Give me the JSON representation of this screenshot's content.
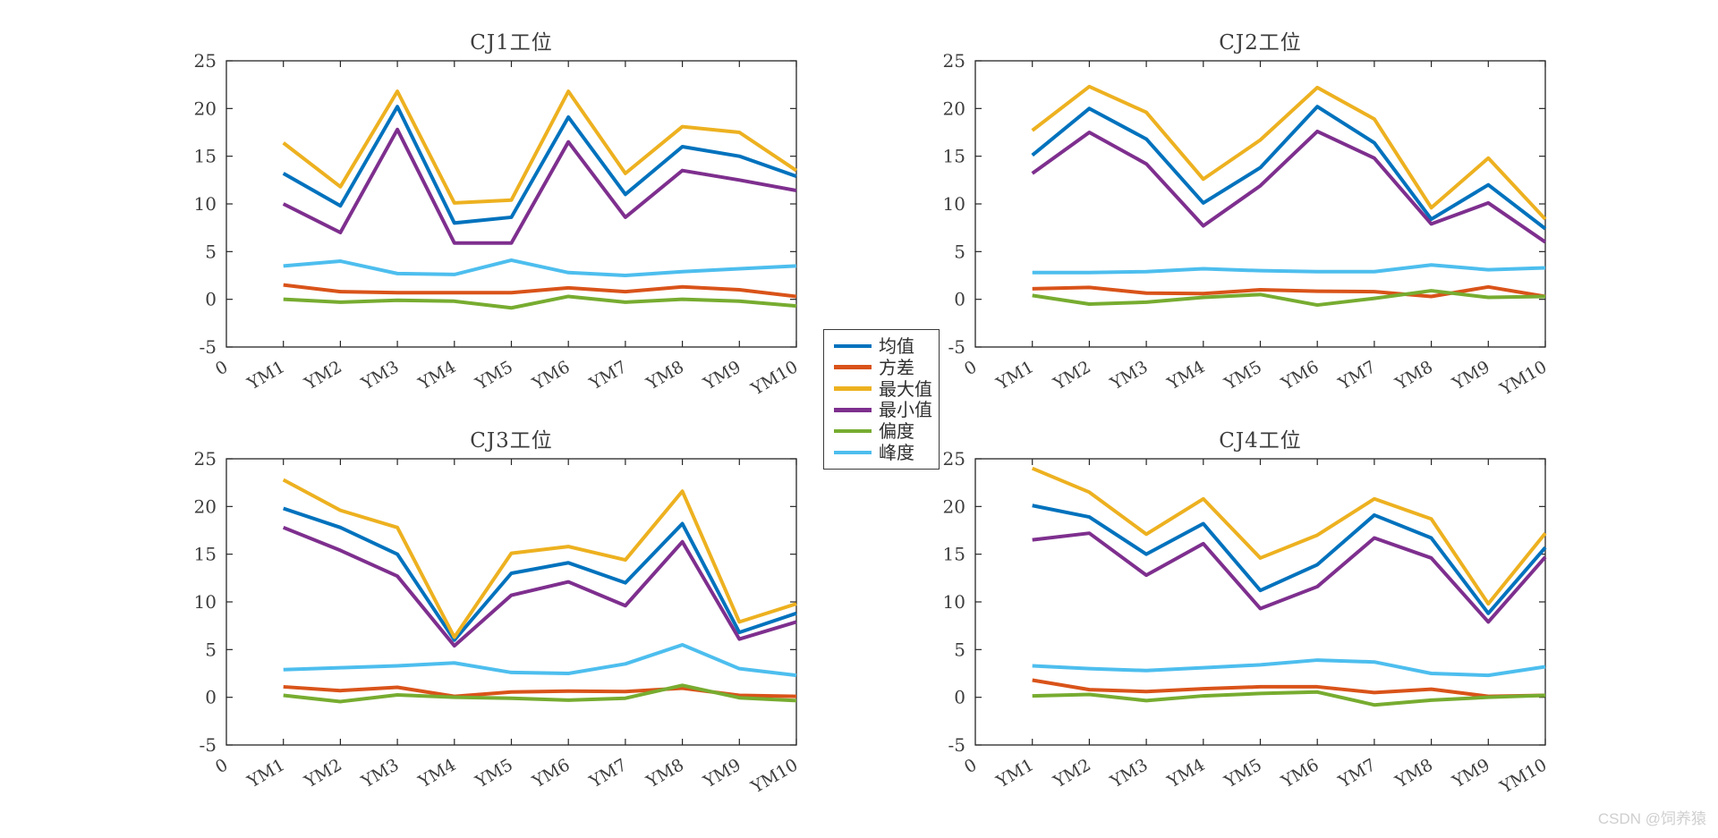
{
  "watermark": "CSDN @饲养猿",
  "legend": {
    "items": [
      {
        "label": "均值",
        "color": "#0072BD"
      },
      {
        "label": "方差",
        "color": "#D95319"
      },
      {
        "label": "最大值",
        "color": "#EDB120"
      },
      {
        "label": "最小值",
        "color": "#7E2F8E"
      },
      {
        "label": "偏度",
        "color": "#77AC30"
      },
      {
        "label": "峰度",
        "color": "#4DBEEE"
      }
    ]
  },
  "axes": {
    "y_ticks": [
      25,
      20,
      15,
      10,
      5,
      0,
      -5
    ],
    "x_tick_labels": [
      "0",
      "YM1",
      "YM2",
      "YM3",
      "YM4",
      "YM5",
      "YM6",
      "YM7",
      "YM8",
      "YM9",
      "YM10"
    ],
    "ylim": [
      -5,
      25
    ],
    "x_label_rotation_deg": 30,
    "grid": "off",
    "box": "on"
  },
  "chart_data": [
    {
      "type": "line",
      "title": "CJ1工位",
      "categories": [
        "YM1",
        "YM2",
        "YM3",
        "YM4",
        "YM5",
        "YM6",
        "YM7",
        "YM8",
        "YM9",
        "YM10"
      ],
      "ylim": [
        -5,
        25
      ],
      "series": [
        {
          "name": "均值",
          "color": "#0072BD",
          "values": [
            13.2,
            9.8,
            20.2,
            8.0,
            8.6,
            19.1,
            11.0,
            16.0,
            15.0,
            12.9
          ]
        },
        {
          "name": "方差",
          "color": "#D95319",
          "values": [
            1.5,
            0.8,
            0.7,
            0.7,
            0.7,
            1.2,
            0.8,
            1.3,
            1.0,
            0.3
          ]
        },
        {
          "name": "最大值",
          "color": "#EDB120",
          "values": [
            16.4,
            11.8,
            21.8,
            10.1,
            10.4,
            21.8,
            13.2,
            18.1,
            17.5,
            13.5
          ]
        },
        {
          "name": "最小值",
          "color": "#7E2F8E",
          "values": [
            10.0,
            7.0,
            17.8,
            5.9,
            5.9,
            16.5,
            8.6,
            13.5,
            12.5,
            11.4
          ]
        },
        {
          "name": "偏度",
          "color": "#77AC30",
          "values": [
            0.0,
            -0.3,
            -0.1,
            -0.2,
            -0.9,
            0.3,
            -0.3,
            0.0,
            -0.2,
            -0.7
          ]
        },
        {
          "name": "峰度",
          "color": "#4DBEEE",
          "values": [
            3.5,
            4.0,
            2.7,
            2.6,
            4.1,
            2.8,
            2.5,
            2.9,
            3.2,
            3.5
          ]
        }
      ]
    },
    {
      "type": "line",
      "title": "CJ2工位",
      "categories": [
        "YM1",
        "YM2",
        "YM3",
        "YM4",
        "YM5",
        "YM6",
        "YM7",
        "YM8",
        "YM9",
        "YM10"
      ],
      "ylim": [
        -5,
        25
      ],
      "series": [
        {
          "name": "均值",
          "color": "#0072BD",
          "values": [
            15.1,
            20.0,
            16.8,
            10.1,
            13.8,
            20.2,
            16.4,
            8.4,
            12.0,
            7.4
          ]
        },
        {
          "name": "方差",
          "color": "#D95319",
          "values": [
            1.1,
            1.25,
            0.65,
            0.6,
            1.0,
            0.85,
            0.8,
            0.3,
            1.3,
            0.3
          ]
        },
        {
          "name": "最大值",
          "color": "#EDB120",
          "values": [
            17.7,
            22.3,
            19.6,
            12.6,
            16.7,
            22.2,
            18.9,
            9.6,
            14.8,
            8.4
          ]
        },
        {
          "name": "最小值",
          "color": "#7E2F8E",
          "values": [
            13.2,
            17.5,
            14.2,
            7.7,
            11.9,
            17.6,
            14.8,
            7.9,
            10.1,
            6.0
          ]
        },
        {
          "name": "偏度",
          "color": "#77AC30",
          "values": [
            0.4,
            -0.5,
            -0.3,
            0.2,
            0.5,
            -0.6,
            0.1,
            0.9,
            0.2,
            0.3
          ]
        },
        {
          "name": "峰度",
          "color": "#4DBEEE",
          "values": [
            2.8,
            2.8,
            2.9,
            3.2,
            3.0,
            2.9,
            2.9,
            3.6,
            3.1,
            3.3
          ]
        }
      ]
    },
    {
      "type": "line",
      "title": "CJ3工位",
      "categories": [
        "YM1",
        "YM2",
        "YM3",
        "YM4",
        "YM5",
        "YM6",
        "YM7",
        "YM8",
        "YM9",
        "YM10"
      ],
      "ylim": [
        -5,
        25
      ],
      "series": [
        {
          "name": "均值",
          "color": "#0072BD",
          "values": [
            19.8,
            17.8,
            15.0,
            6.0,
            13.0,
            14.1,
            12.0,
            18.2,
            6.8,
            8.8
          ]
        },
        {
          "name": "方差",
          "color": "#D95319",
          "values": [
            1.1,
            0.7,
            1.05,
            0.1,
            0.55,
            0.65,
            0.6,
            0.95,
            0.2,
            0.1
          ]
        },
        {
          "name": "最大值",
          "color": "#EDB120",
          "values": [
            22.8,
            19.6,
            17.8,
            6.3,
            15.1,
            15.8,
            14.4,
            21.6,
            7.9,
            9.8
          ]
        },
        {
          "name": "最小值",
          "color": "#7E2F8E",
          "values": [
            17.8,
            15.4,
            12.7,
            5.4,
            10.7,
            12.1,
            9.6,
            16.3,
            6.1,
            7.9
          ]
        },
        {
          "name": "偏度",
          "color": "#77AC30",
          "values": [
            0.2,
            -0.45,
            0.25,
            0.0,
            -0.1,
            -0.3,
            -0.1,
            1.25,
            -0.05,
            -0.35
          ]
        },
        {
          "name": "峰度",
          "color": "#4DBEEE",
          "values": [
            2.9,
            3.1,
            3.3,
            3.6,
            2.6,
            2.5,
            3.5,
            5.5,
            3.0,
            2.3
          ]
        }
      ]
    },
    {
      "type": "line",
      "title": "CJ4工位",
      "categories": [
        "YM1",
        "YM2",
        "YM3",
        "YM4",
        "YM5",
        "YM6",
        "YM7",
        "YM8",
        "YM9",
        "YM10"
      ],
      "ylim": [
        -5,
        25
      ],
      "series": [
        {
          "name": "均值",
          "color": "#0072BD",
          "values": [
            20.1,
            18.9,
            15.0,
            18.2,
            11.2,
            13.9,
            19.1,
            16.7,
            8.8,
            15.7
          ]
        },
        {
          "name": "方差",
          "color": "#D95319",
          "values": [
            1.8,
            0.8,
            0.6,
            0.9,
            1.1,
            1.1,
            0.5,
            0.85,
            0.1,
            0.2
          ]
        },
        {
          "name": "最大值",
          "color": "#EDB120",
          "values": [
            24.0,
            21.5,
            17.1,
            20.8,
            14.6,
            17.0,
            20.8,
            18.7,
            9.8,
            17.2
          ]
        },
        {
          "name": "最小值",
          "color": "#7E2F8E",
          "values": [
            16.5,
            17.2,
            12.8,
            16.1,
            9.3,
            11.6,
            16.7,
            14.6,
            7.9,
            14.7
          ]
        },
        {
          "name": "偏度",
          "color": "#77AC30",
          "values": [
            0.15,
            0.3,
            -0.35,
            0.15,
            0.4,
            0.55,
            -0.8,
            -0.3,
            0.0,
            0.2
          ]
        },
        {
          "name": "峰度",
          "color": "#4DBEEE",
          "values": [
            3.3,
            3.0,
            2.8,
            3.1,
            3.4,
            3.9,
            3.7,
            2.5,
            2.3,
            3.2
          ]
        }
      ]
    }
  ]
}
